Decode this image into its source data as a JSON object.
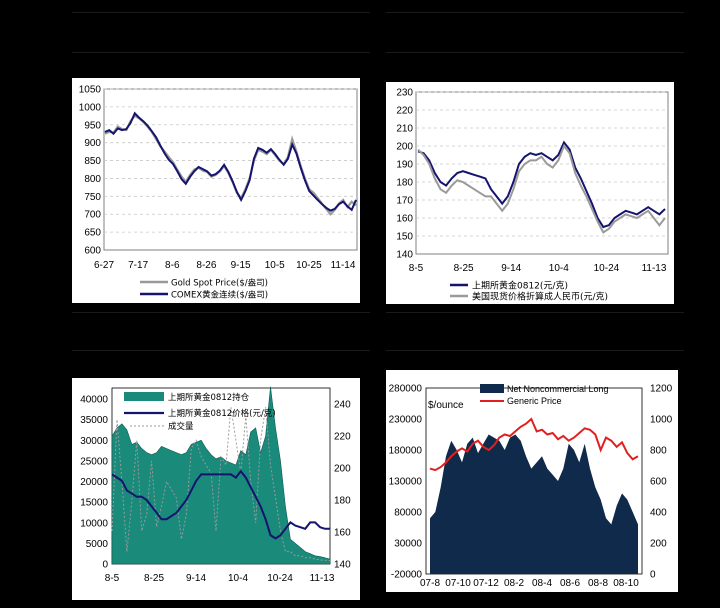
{
  "colors": {
    "page_bg": "#000000",
    "chart_bg": "#ffffff",
    "plot_bg": "#ffffff",
    "navy": "#14146e",
    "gray_series": "#9a9a9a",
    "teal": "#1a8a7a",
    "dark_navy_area": "#0f2a4a",
    "red": "#e02020",
    "grid": "#c8c8c8"
  },
  "chart_data": [
    {
      "type": "line",
      "x_tick_labels": [
        "6-27",
        "7-17",
        "8-6",
        "8-26",
        "9-15",
        "10-5",
        "10-25",
        "11-14"
      ],
      "ylim": [
        600,
        1050
      ],
      "y_ticks": [
        600,
        650,
        700,
        750,
        800,
        850,
        900,
        950,
        1000,
        1050
      ],
      "grid": true,
      "legend_position": "bottom",
      "series": [
        {
          "name": "Gold Spot Price($/盎司)",
          "color": "#9a9a9a",
          "values": [
            925,
            930,
            928,
            945,
            938,
            935,
            960,
            975,
            968,
            958,
            945,
            930,
            910,
            890,
            875,
            860,
            845,
            825,
            805,
            790,
            810,
            825,
            830,
            822,
            818,
            805,
            810,
            820,
            835,
            815,
            790,
            760,
            745,
            770,
            800,
            850,
            880,
            875,
            868,
            880,
            865,
            850,
            840,
            860,
            910,
            875,
            835,
            800,
            770,
            760,
            745,
            730,
            715,
            700,
            712,
            730,
            740,
            720,
            735,
            725
          ]
        },
        {
          "name": "COMEX黄金连续($/盎司)",
          "color": "#14146e",
          "values": [
            930,
            935,
            925,
            940,
            935,
            938,
            955,
            982,
            970,
            960,
            948,
            932,
            915,
            892,
            870,
            852,
            840,
            820,
            798,
            785,
            805,
            820,
            832,
            826,
            820,
            808,
            812,
            822,
            838,
            818,
            792,
            762,
            740,
            765,
            795,
            855,
            885,
            880,
            872,
            882,
            868,
            852,
            838,
            855,
            895,
            870,
            830,
            795,
            765,
            752,
            740,
            728,
            718,
            710,
            715,
            728,
            735,
            722,
            712,
            740
          ]
        }
      ]
    },
    {
      "type": "line",
      "x_tick_labels": [
        "8-5",
        "8-25",
        "9-14",
        "10-4",
        "10-24",
        "11-13"
      ],
      "ylim": [
        140,
        230
      ],
      "y_ticks": [
        140,
        150,
        160,
        170,
        180,
        190,
        200,
        210,
        220,
        230
      ],
      "grid": true,
      "legend_position": "bottom",
      "series": [
        {
          "name": "上期所黄金0812(元/克)",
          "color": "#14146e",
          "values": [
            197,
            196,
            192,
            185,
            180,
            178,
            182,
            185,
            186,
            185,
            184,
            183,
            182,
            176,
            172,
            168,
            172,
            180,
            190,
            194,
            196,
            195,
            196,
            194,
            192,
            195,
            202,
            198,
            188,
            182,
            175,
            168,
            160,
            155,
            156,
            160,
            162,
            164,
            163,
            162,
            164,
            166,
            164,
            162,
            165
          ]
        },
        {
          "name": "美国现货价格折算成人民币(元/克)",
          "color": "#9a9a9a",
          "values": [
            198,
            195,
            190,
            182,
            176,
            174,
            178,
            181,
            180,
            178,
            176,
            174,
            172,
            172,
            168,
            164,
            168,
            176,
            186,
            190,
            192,
            192,
            194,
            190,
            188,
            192,
            200,
            196,
            185,
            178,
            172,
            165,
            158,
            152,
            154,
            158,
            160,
            162,
            161,
            160,
            162,
            164,
            160,
            156,
            160
          ]
        }
      ]
    },
    {
      "type": "area",
      "x_tick_labels": [
        "8-5",
        "8-25",
        "9-14",
        "10-4",
        "10-24",
        "11-13"
      ],
      "ylim_left": [
        0,
        40000
      ],
      "y_ticks_left": [
        0,
        5000,
        10000,
        15000,
        20000,
        25000,
        30000,
        35000,
        40000
      ],
      "ylim_right": [
        140,
        250
      ],
      "y_ticks_right": [
        140,
        160,
        180,
        200,
        220,
        240
      ],
      "legend_position": "top-right",
      "series": [
        {
          "name": "上期所黄金0812持仓",
          "axis": "left",
          "color": "#1a8a7a",
          "values": [
            31000,
            33000,
            34000,
            32500,
            29000,
            29500,
            28000,
            27000,
            26500,
            27000,
            28500,
            28000,
            27500,
            27000,
            26500,
            27000,
            29000,
            29500,
            30000,
            28000,
            26500,
            25500,
            26000,
            25000,
            24500,
            24000,
            27500,
            26500,
            32000,
            33000,
            27000,
            31000,
            43000,
            33000,
            25000,
            14000,
            6000,
            5000,
            4000,
            3000,
            2500,
            2000,
            1800,
            1500,
            1200
          ]
        },
        {
          "name": "上期所黄金0812价格(元/克)",
          "axis": "right",
          "color": "#14146e",
          "values": [
            196,
            194,
            192,
            186,
            184,
            182,
            182,
            180,
            176,
            172,
            168,
            168,
            170,
            172,
            176,
            180,
            186,
            192,
            196,
            196,
            196,
            196,
            196,
            196,
            196,
            194,
            198,
            194,
            188,
            182,
            176,
            168,
            158,
            156,
            158,
            162,
            166,
            164,
            163,
            162,
            166,
            166,
            163,
            162,
            162
          ]
        },
        {
          "name": "成交量",
          "axis": "left",
          "color": "#9a9a9a",
          "values": [
            8000,
            35000,
            20000,
            3000,
            15000,
            30000,
            8000,
            12000,
            25000,
            9000,
            14000,
            20000,
            18000,
            16000,
            6000,
            12000,
            28000,
            30000,
            26000,
            24000,
            22000,
            8000,
            26000,
            24000,
            38000,
            30000,
            22000,
            36000,
            20000,
            10000,
            30000,
            38000,
            24000,
            16000,
            8000,
            3000,
            3000,
            2000,
            2000,
            1500,
            1500,
            1200,
            1000,
            900,
            800
          ]
        }
      ]
    },
    {
      "type": "area",
      "x_tick_labels": [
        "07-8",
        "07-10",
        "07-12",
        "08-2",
        "08-4",
        "08-6",
        "08-8",
        "08-10"
      ],
      "ylim_left": [
        -20000,
        280000
      ],
      "y_ticks_left": [
        -20000,
        30000,
        80000,
        130000,
        180000,
        230000,
        280000
      ],
      "ylim_right": [
        0,
        1200
      ],
      "y_ticks_right": [
        0,
        200,
        400,
        600,
        800,
        1000,
        1200
      ],
      "left_unit_label": "$/ounce",
      "legend_position": "top-left",
      "series": [
        {
          "name": "Net Noncommercial Long",
          "axis": "left",
          "color": "#0f2a4a",
          "values": [
            70000,
            80000,
            120000,
            170000,
            195000,
            180000,
            160000,
            190000,
            200000,
            175000,
            190000,
            205000,
            200000,
            195000,
            180000,
            200000,
            205000,
            195000,
            170000,
            150000,
            160000,
            170000,
            150000,
            140000,
            130000,
            150000,
            190000,
            180000,
            160000,
            190000,
            150000,
            120000,
            100000,
            70000,
            60000,
            90000,
            110000,
            100000,
            80000,
            60000
          ]
        },
        {
          "name": "Generic Price",
          "axis": "right",
          "color": "#e02020",
          "values": [
            680,
            670,
            690,
            720,
            760,
            790,
            810,
            790,
            840,
            860,
            820,
            800,
            830,
            880,
            900,
            890,
            920,
            950,
            970,
            1000,
            920,
            930,
            900,
            910,
            870,
            890,
            860,
            880,
            910,
            940,
            930,
            900,
            800,
            880,
            860,
            820,
            850,
            780,
            740,
            760
          ]
        }
      ]
    }
  ]
}
